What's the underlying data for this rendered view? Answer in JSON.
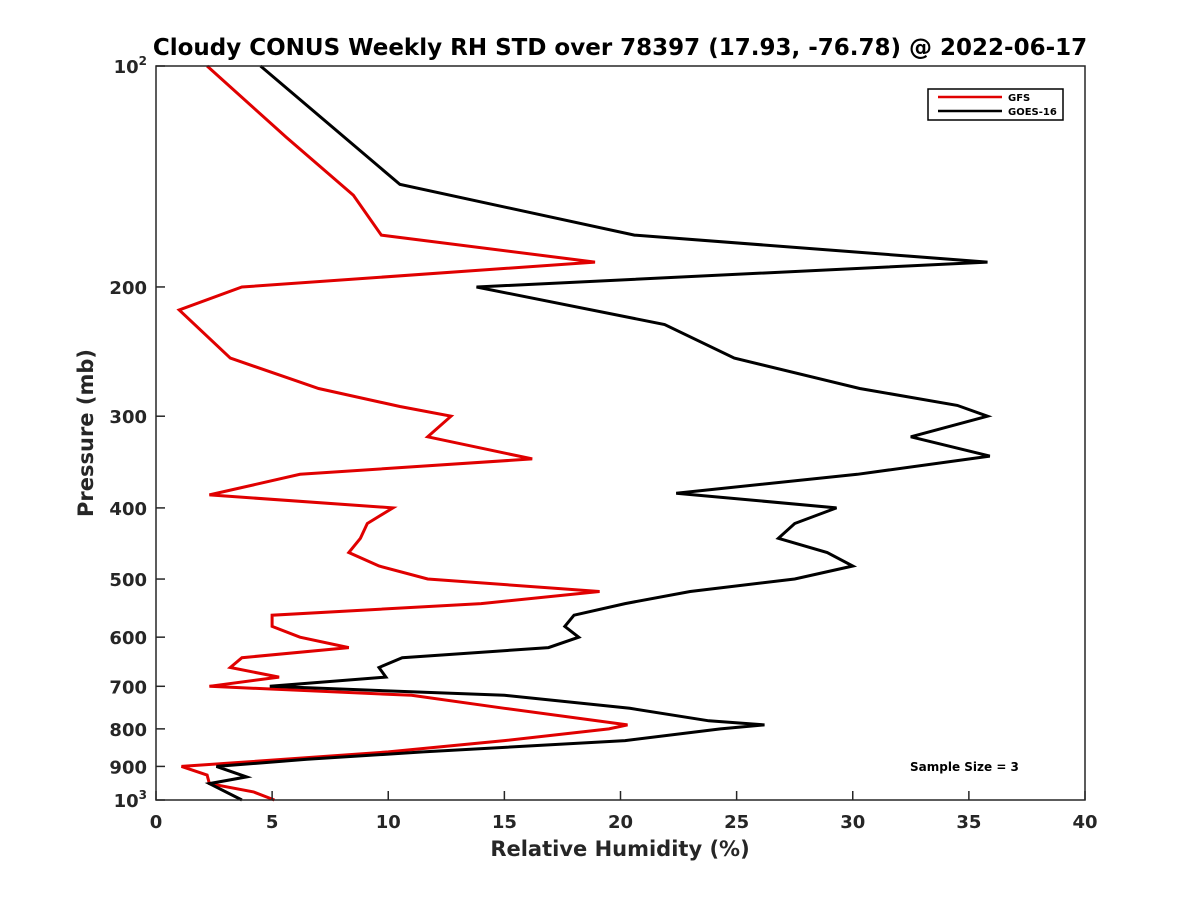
{
  "chart_data": {
    "type": "line",
    "title": "Cloudy CONUS Weekly RH STD over 78397 (17.93, -76.78) @ 2022-06-17",
    "xlabel": "Relative Humidity (%)",
    "ylabel": "Pressure (mb)",
    "xlim": [
      0,
      40
    ],
    "ylim": [
      100,
      1000
    ],
    "y_scale": "log",
    "y_reversed": true,
    "grid": false,
    "legend_position": "top-right",
    "x_ticks": [
      0,
      5,
      10,
      15,
      20,
      25,
      30,
      35,
      40
    ],
    "x_tick_labels": [
      "0",
      "5",
      "10",
      "15",
      "20",
      "25",
      "30",
      "35",
      "40"
    ],
    "y_ticks": [
      {
        "value": 100,
        "base": "10",
        "exp": "2",
        "label": ""
      },
      {
        "value": 200,
        "base": "",
        "exp": "",
        "label": "200"
      },
      {
        "value": 300,
        "base": "",
        "exp": "",
        "label": "300"
      },
      {
        "value": 400,
        "base": "",
        "exp": "",
        "label": "400"
      },
      {
        "value": 500,
        "base": "",
        "exp": "",
        "label": "500"
      },
      {
        "value": 600,
        "base": "",
        "exp": "",
        "label": "600"
      },
      {
        "value": 700,
        "base": "",
        "exp": "",
        "label": "700"
      },
      {
        "value": 800,
        "base": "",
        "exp": "",
        "label": "800"
      },
      {
        "value": 900,
        "base": "",
        "exp": "",
        "label": "900"
      },
      {
        "value": 1000,
        "base": "10",
        "exp": "3",
        "label": ""
      }
    ],
    "annotations": [
      "Sample Size = 3"
    ],
    "series": [
      {
        "name": "GFS",
        "color": "#e00000",
        "points": [
          {
            "x": 2.2,
            "p": 100
          },
          {
            "x": 5.6,
            "p": 125
          },
          {
            "x": 8.5,
            "p": 150
          },
          {
            "x": 9.7,
            "p": 170
          },
          {
            "x": 18.9,
            "p": 185
          },
          {
            "x": 3.7,
            "p": 200
          },
          {
            "x": 1.0,
            "p": 215
          },
          {
            "x": 3.2,
            "p": 250
          },
          {
            "x": 7.0,
            "p": 275
          },
          {
            "x": 10.5,
            "p": 291
          },
          {
            "x": 12.7,
            "p": 300
          },
          {
            "x": 11.7,
            "p": 320
          },
          {
            "x": 16.2,
            "p": 343
          },
          {
            "x": 6.2,
            "p": 360
          },
          {
            "x": 2.3,
            "p": 384
          },
          {
            "x": 10.2,
            "p": 400
          },
          {
            "x": 9.1,
            "p": 420
          },
          {
            "x": 8.8,
            "p": 440
          },
          {
            "x": 8.3,
            "p": 460
          },
          {
            "x": 9.6,
            "p": 480
          },
          {
            "x": 11.7,
            "p": 500
          },
          {
            "x": 19.1,
            "p": 520
          },
          {
            "x": 14.0,
            "p": 540
          },
          {
            "x": 5.0,
            "p": 560
          },
          {
            "x": 5.0,
            "p": 580
          },
          {
            "x": 6.2,
            "p": 600
          },
          {
            "x": 8.3,
            "p": 620
          },
          {
            "x": 3.7,
            "p": 640
          },
          {
            "x": 3.2,
            "p": 660
          },
          {
            "x": 5.3,
            "p": 680
          },
          {
            "x": 2.3,
            "p": 700
          },
          {
            "x": 11.0,
            "p": 720
          },
          {
            "x": 15.0,
            "p": 750
          },
          {
            "x": 20.3,
            "p": 790
          },
          {
            "x": 19.5,
            "p": 800
          },
          {
            "x": 15.0,
            "p": 830
          },
          {
            "x": 10.0,
            "p": 860
          },
          {
            "x": 3.3,
            "p": 890
          },
          {
            "x": 1.1,
            "p": 900
          },
          {
            "x": 2.2,
            "p": 925
          },
          {
            "x": 2.3,
            "p": 950
          },
          {
            "x": 4.2,
            "p": 975
          },
          {
            "x": 5.1,
            "p": 1000
          }
        ]
      },
      {
        "name": "GOES-16",
        "color": "#000000",
        "points": [
          {
            "x": 4.5,
            "p": 100
          },
          {
            "x": 10.5,
            "p": 145
          },
          {
            "x": 20.6,
            "p": 170
          },
          {
            "x": 35.8,
            "p": 185
          },
          {
            "x": 13.8,
            "p": 200
          },
          {
            "x": 21.9,
            "p": 225
          },
          {
            "x": 24.9,
            "p": 250
          },
          {
            "x": 30.3,
            "p": 275
          },
          {
            "x": 34.5,
            "p": 290
          },
          {
            "x": 35.8,
            "p": 300
          },
          {
            "x": 32.5,
            "p": 320
          },
          {
            "x": 35.9,
            "p": 340
          },
          {
            "x": 30.2,
            "p": 360
          },
          {
            "x": 22.4,
            "p": 382
          },
          {
            "x": 29.3,
            "p": 400
          },
          {
            "x": 27.5,
            "p": 420
          },
          {
            "x": 26.8,
            "p": 440
          },
          {
            "x": 28.9,
            "p": 460
          },
          {
            "x": 30.0,
            "p": 480
          },
          {
            "x": 27.5,
            "p": 500
          },
          {
            "x": 23.0,
            "p": 520
          },
          {
            "x": 20.2,
            "p": 540
          },
          {
            "x": 18.0,
            "p": 560
          },
          {
            "x": 17.6,
            "p": 580
          },
          {
            "x": 18.2,
            "p": 600
          },
          {
            "x": 16.9,
            "p": 620
          },
          {
            "x": 10.6,
            "p": 640
          },
          {
            "x": 9.6,
            "p": 660
          },
          {
            "x": 9.9,
            "p": 680
          },
          {
            "x": 4.9,
            "p": 700
          },
          {
            "x": 15.0,
            "p": 720
          },
          {
            "x": 20.4,
            "p": 750
          },
          {
            "x": 23.8,
            "p": 780
          },
          {
            "x": 26.2,
            "p": 790
          },
          {
            "x": 24.3,
            "p": 800
          },
          {
            "x": 20.2,
            "p": 830
          },
          {
            "x": 11.5,
            "p": 860
          },
          {
            "x": 6.5,
            "p": 880
          },
          {
            "x": 2.6,
            "p": 900
          },
          {
            "x": 3.9,
            "p": 930
          },
          {
            "x": 2.3,
            "p": 950
          },
          {
            "x": 3.7,
            "p": 1000
          }
        ]
      }
    ]
  }
}
